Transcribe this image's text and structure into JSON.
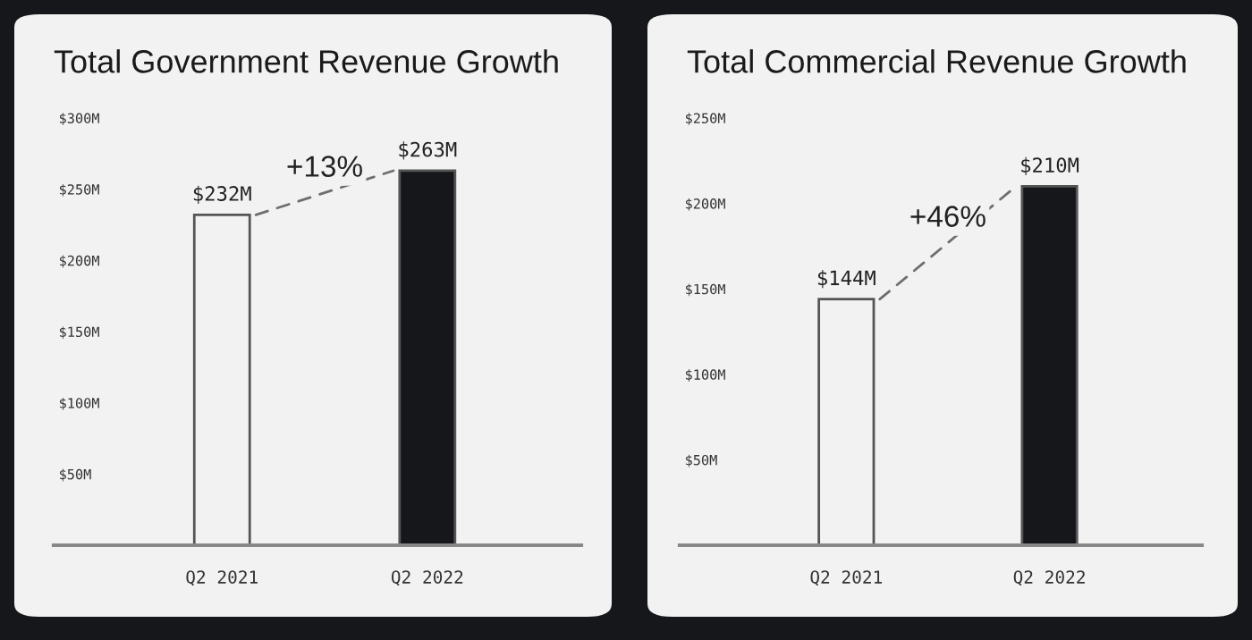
{
  "chart_data": [
    {
      "type": "bar",
      "title": "Total Government Revenue Growth",
      "categories": [
        "Q2 2021",
        "Q2 2022"
      ],
      "series": [
        {
          "colors": [
            "#f2f2f2",
            "#16171b"
          ],
          "values": [
            232,
            263
          ],
          "value_labels": [
            "$232M",
            "$263M"
          ]
        }
      ],
      "annotations": [
        {
          "text": "+13%",
          "x": "Q2 2022",
          "y": 263
        }
      ],
      "ylim": [
        0,
        300
      ],
      "yticks": [
        {
          "value": 50,
          "label": "$50M"
        },
        {
          "value": 100,
          "label": "$100M"
        },
        {
          "value": 150,
          "label": "$150M"
        },
        {
          "value": 200,
          "label": "$200M"
        },
        {
          "value": 250,
          "label": "$250M"
        },
        {
          "value": 300,
          "label": "$300M"
        }
      ]
    },
    {
      "type": "bar",
      "title": "Total Commercial Revenue Growth",
      "categories": [
        "Q2 2021",
        "Q2 2022"
      ],
      "series": [
        {
          "colors": [
            "#f2f2f2",
            "#16171b"
          ],
          "values": [
            144,
            210
          ],
          "value_labels": [
            "$144M",
            "$210M"
          ]
        }
      ],
      "annotations": [
        {
          "text": "+46%",
          "x": "Q2 2022",
          "y": 210
        }
      ],
      "ylim": [
        0,
        250
      ],
      "yticks": [
        {
          "value": 50,
          "label": "$50M"
        },
        {
          "value": 100,
          "label": "$100M"
        },
        {
          "value": 150,
          "label": "$150M"
        },
        {
          "value": 200,
          "label": "$200M"
        },
        {
          "value": 250,
          "label": "$250M"
        }
      ]
    }
  ]
}
